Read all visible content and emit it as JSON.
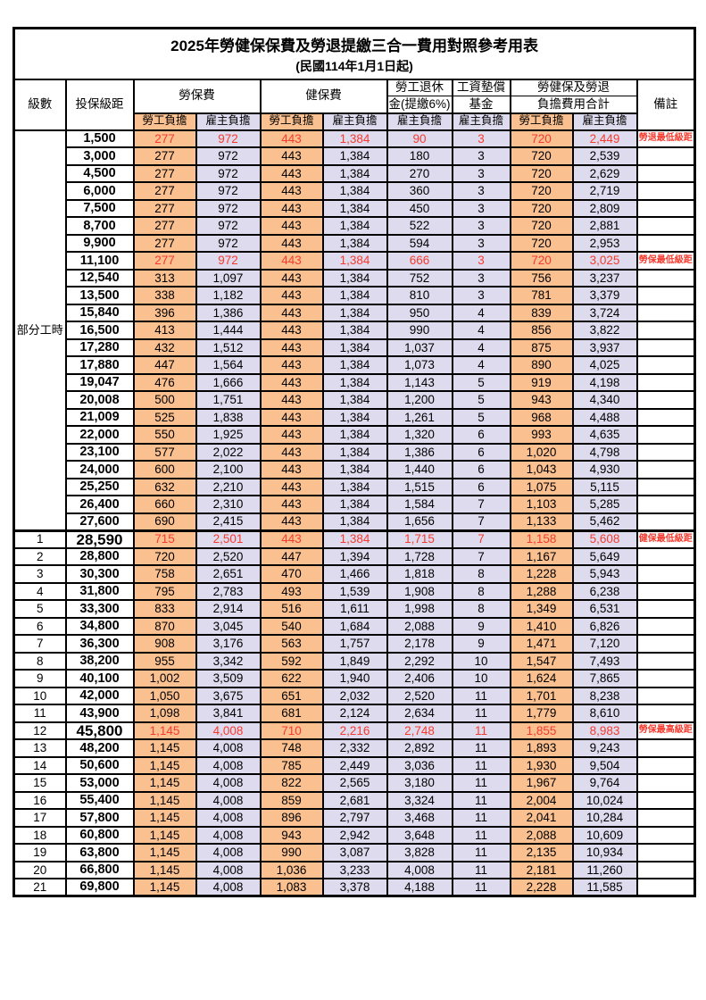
{
  "title": "2025年勞健保保費及勞退提繳三合一費用對照參考用表",
  "subtitle": "(民國114年1月1日起)",
  "colors": {
    "employee_col_bg": "#FAC090",
    "employer_col_bg": "#DFDBEE",
    "highlight_text": "#F63B2E",
    "grid": "#000000"
  },
  "header": {
    "level": "級數",
    "bracket": "投保級距",
    "labor_fee": "勞保費",
    "health_fee": "健保費",
    "pension_line1": "勞工退休",
    "pension_line2": "金(提繳6%)",
    "wage_fund_line1": "工資墊償",
    "wage_fund_line2": "基金",
    "total_line1": "勞健保及勞退",
    "total_line2": "負擔費用合計",
    "remark": "備註",
    "employee": "勞工負擔",
    "employer": "雇主負擔"
  },
  "part_time_label": "部分工時",
  "rows": [
    {
      "level": "",
      "bracket": "1,500",
      "values": [
        "277",
        "972",
        "443",
        "1,384",
        "90",
        "3",
        "720",
        "2,449"
      ],
      "remark": "勞退最低級距",
      "highlight": true
    },
    {
      "level": "",
      "bracket": "3,000",
      "values": [
        "277",
        "972",
        "443",
        "1,384",
        "180",
        "3",
        "720",
        "2,539"
      ],
      "remark": ""
    },
    {
      "level": "",
      "bracket": "4,500",
      "values": [
        "277",
        "972",
        "443",
        "1,384",
        "270",
        "3",
        "720",
        "2,629"
      ],
      "remark": ""
    },
    {
      "level": "",
      "bracket": "6,000",
      "values": [
        "277",
        "972",
        "443",
        "1,384",
        "360",
        "3",
        "720",
        "2,719"
      ],
      "remark": ""
    },
    {
      "level": "",
      "bracket": "7,500",
      "values": [
        "277",
        "972",
        "443",
        "1,384",
        "450",
        "3",
        "720",
        "2,809"
      ],
      "remark": ""
    },
    {
      "level": "",
      "bracket": "8,700",
      "values": [
        "277",
        "972",
        "443",
        "1,384",
        "522",
        "3",
        "720",
        "2,881"
      ],
      "remark": ""
    },
    {
      "level": "",
      "bracket": "9,900",
      "values": [
        "277",
        "972",
        "443",
        "1,384",
        "594",
        "3",
        "720",
        "2,953"
      ],
      "remark": ""
    },
    {
      "level": "",
      "bracket": "11,100",
      "values": [
        "277",
        "972",
        "443",
        "1,384",
        "666",
        "3",
        "720",
        "3,025"
      ],
      "remark": "勞保最低級距",
      "highlight": true
    },
    {
      "level": "",
      "bracket": "12,540",
      "values": [
        "313",
        "1,097",
        "443",
        "1,384",
        "752",
        "3",
        "756",
        "3,237"
      ],
      "remark": ""
    },
    {
      "level": "",
      "bracket": "13,500",
      "values": [
        "338",
        "1,182",
        "443",
        "1,384",
        "810",
        "3",
        "781",
        "3,379"
      ],
      "remark": ""
    },
    {
      "level": "",
      "bracket": "15,840",
      "values": [
        "396",
        "1,386",
        "443",
        "1,384",
        "950",
        "4",
        "839",
        "3,724"
      ],
      "remark": ""
    },
    {
      "level": "",
      "bracket": "16,500",
      "values": [
        "413",
        "1,444",
        "443",
        "1,384",
        "990",
        "4",
        "856",
        "3,822"
      ],
      "remark": ""
    },
    {
      "level": "",
      "bracket": "17,280",
      "values": [
        "432",
        "1,512",
        "443",
        "1,384",
        "1,037",
        "4",
        "875",
        "3,937"
      ],
      "remark": ""
    },
    {
      "level": "",
      "bracket": "17,880",
      "values": [
        "447",
        "1,564",
        "443",
        "1,384",
        "1,073",
        "4",
        "890",
        "4,025"
      ],
      "remark": ""
    },
    {
      "level": "",
      "bracket": "19,047",
      "values": [
        "476",
        "1,666",
        "443",
        "1,384",
        "1,143",
        "5",
        "919",
        "4,198"
      ],
      "remark": ""
    },
    {
      "level": "",
      "bracket": "20,008",
      "values": [
        "500",
        "1,751",
        "443",
        "1,384",
        "1,200",
        "5",
        "943",
        "4,340"
      ],
      "remark": ""
    },
    {
      "level": "",
      "bracket": "21,009",
      "values": [
        "525",
        "1,838",
        "443",
        "1,384",
        "1,261",
        "5",
        "968",
        "4,488"
      ],
      "remark": ""
    },
    {
      "level": "",
      "bracket": "22,000",
      "values": [
        "550",
        "1,925",
        "443",
        "1,384",
        "1,320",
        "6",
        "993",
        "4,635"
      ],
      "remark": ""
    },
    {
      "level": "",
      "bracket": "23,100",
      "values": [
        "577",
        "2,022",
        "443",
        "1,384",
        "1,386",
        "6",
        "1,020",
        "4,798"
      ],
      "remark": ""
    },
    {
      "level": "",
      "bracket": "24,000",
      "values": [
        "600",
        "2,100",
        "443",
        "1,384",
        "1,440",
        "6",
        "1,043",
        "4,930"
      ],
      "remark": ""
    },
    {
      "level": "",
      "bracket": "25,250",
      "values": [
        "632",
        "2,210",
        "443",
        "1,384",
        "1,515",
        "6",
        "1,075",
        "5,115"
      ],
      "remark": ""
    },
    {
      "level": "",
      "bracket": "26,400",
      "values": [
        "660",
        "2,310",
        "443",
        "1,384",
        "1,584",
        "7",
        "1,103",
        "5,285"
      ],
      "remark": ""
    },
    {
      "level": "",
      "bracket": "27,600",
      "values": [
        "690",
        "2,415",
        "443",
        "1,384",
        "1,656",
        "7",
        "1,133",
        "5,462"
      ],
      "remark": ""
    },
    {
      "level": "1",
      "bracket": "28,590",
      "values": [
        "715",
        "2,501",
        "443",
        "1,384",
        "1,715",
        "7",
        "1,158",
        "5,608"
      ],
      "remark": "健保最低級距",
      "highlight": true,
      "big": true,
      "section_start": true
    },
    {
      "level": "2",
      "bracket": "28,800",
      "values": [
        "720",
        "2,520",
        "447",
        "1,394",
        "1,728",
        "7",
        "1,167",
        "5,649"
      ],
      "remark": ""
    },
    {
      "level": "3",
      "bracket": "30,300",
      "values": [
        "758",
        "2,651",
        "470",
        "1,466",
        "1,818",
        "8",
        "1,228",
        "5,943"
      ],
      "remark": ""
    },
    {
      "level": "4",
      "bracket": "31,800",
      "values": [
        "795",
        "2,783",
        "493",
        "1,539",
        "1,908",
        "8",
        "1,288",
        "6,238"
      ],
      "remark": ""
    },
    {
      "level": "5",
      "bracket": "33,300",
      "values": [
        "833",
        "2,914",
        "516",
        "1,611",
        "1,998",
        "8",
        "1,349",
        "6,531"
      ],
      "remark": ""
    },
    {
      "level": "6",
      "bracket": "34,800",
      "values": [
        "870",
        "3,045",
        "540",
        "1,684",
        "2,088",
        "9",
        "1,410",
        "6,826"
      ],
      "remark": ""
    },
    {
      "level": "7",
      "bracket": "36,300",
      "values": [
        "908",
        "3,176",
        "563",
        "1,757",
        "2,178",
        "9",
        "1,471",
        "7,120"
      ],
      "remark": ""
    },
    {
      "level": "8",
      "bracket": "38,200",
      "values": [
        "955",
        "3,342",
        "592",
        "1,849",
        "2,292",
        "10",
        "1,547",
        "7,493"
      ],
      "remark": ""
    },
    {
      "level": "9",
      "bracket": "40,100",
      "values": [
        "1,002",
        "3,509",
        "622",
        "1,940",
        "2,406",
        "10",
        "1,624",
        "7,865"
      ],
      "remark": ""
    },
    {
      "level": "10",
      "bracket": "42,000",
      "values": [
        "1,050",
        "3,675",
        "651",
        "2,032",
        "2,520",
        "11",
        "1,701",
        "8,238"
      ],
      "remark": ""
    },
    {
      "level": "11",
      "bracket": "43,900",
      "values": [
        "1,098",
        "3,841",
        "681",
        "2,124",
        "2,634",
        "11",
        "1,779",
        "8,610"
      ],
      "remark": ""
    },
    {
      "level": "12",
      "bracket": "45,800",
      "values": [
        "1,145",
        "4,008",
        "710",
        "2,216",
        "2,748",
        "11",
        "1,855",
        "8,983"
      ],
      "remark": "勞保最高級距",
      "highlight": true,
      "big": true
    },
    {
      "level": "13",
      "bracket": "48,200",
      "values": [
        "1,145",
        "4,008",
        "748",
        "2,332",
        "2,892",
        "11",
        "1,893",
        "9,243"
      ],
      "remark": ""
    },
    {
      "level": "14",
      "bracket": "50,600",
      "values": [
        "1,145",
        "4,008",
        "785",
        "2,449",
        "3,036",
        "11",
        "1,930",
        "9,504"
      ],
      "remark": ""
    },
    {
      "level": "15",
      "bracket": "53,000",
      "values": [
        "1,145",
        "4,008",
        "822",
        "2,565",
        "3,180",
        "11",
        "1,967",
        "9,764"
      ],
      "remark": ""
    },
    {
      "level": "16",
      "bracket": "55,400",
      "values": [
        "1,145",
        "4,008",
        "859",
        "2,681",
        "3,324",
        "11",
        "2,004",
        "10,024"
      ],
      "remark": ""
    },
    {
      "level": "17",
      "bracket": "57,800",
      "values": [
        "1,145",
        "4,008",
        "896",
        "2,797",
        "3,468",
        "11",
        "2,041",
        "10,284"
      ],
      "remark": ""
    },
    {
      "level": "18",
      "bracket": "60,800",
      "values": [
        "1,145",
        "4,008",
        "943",
        "2,942",
        "3,648",
        "11",
        "2,088",
        "10,609"
      ],
      "remark": ""
    },
    {
      "level": "19",
      "bracket": "63,800",
      "values": [
        "1,145",
        "4,008",
        "990",
        "3,087",
        "3,828",
        "11",
        "2,135",
        "10,934"
      ],
      "remark": ""
    },
    {
      "level": "20",
      "bracket": "66,800",
      "values": [
        "1,145",
        "4,008",
        "1,036",
        "3,233",
        "4,008",
        "11",
        "2,181",
        "11,260"
      ],
      "remark": ""
    },
    {
      "level": "21",
      "bracket": "69,800",
      "values": [
        "1,145",
        "4,008",
        "1,083",
        "3,378",
        "4,188",
        "11",
        "2,228",
        "11,585"
      ],
      "remark": ""
    }
  ]
}
